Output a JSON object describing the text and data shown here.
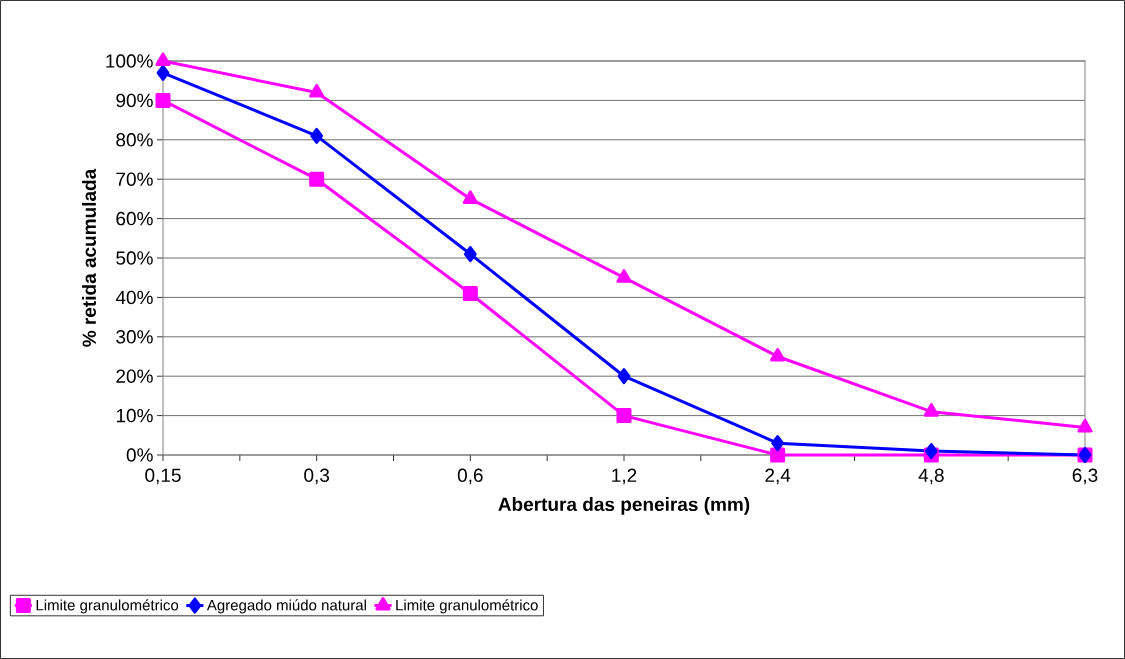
{
  "chart_data": {
    "type": "line",
    "xlabel": "Abertura das peneiras (mm)",
    "ylabel": "% retida acumulada",
    "categories": [
      "0,15",
      "0,3",
      "0,6",
      "1,2",
      "2,4",
      "4,8",
      "6,3"
    ],
    "series": [
      {
        "name": "Limite granulométrico",
        "color": "#ff00ff",
        "marker": "square",
        "values": [
          90,
          70,
          41,
          10,
          0,
          0,
          0
        ]
      },
      {
        "name": "Agregado miúdo natural",
        "color": "#0000ff",
        "marker": "diamond",
        "values": [
          97,
          81,
          51,
          20,
          3,
          1,
          0
        ]
      },
      {
        "name": "Limite granulométrico",
        "color": "#ff00ff",
        "marker": "triangle",
        "values": [
          100,
          92,
          65,
          45,
          25,
          11,
          7
        ]
      }
    ],
    "ylim": [
      0,
      100
    ],
    "yticks": [
      {
        "value": 0,
        "label": "0%"
      },
      {
        "value": 10,
        "label": "10%"
      },
      {
        "value": 20,
        "label": "20%"
      },
      {
        "value": 30,
        "label": "30%"
      },
      {
        "value": 40,
        "label": "40%"
      },
      {
        "value": 50,
        "label": "50%"
      },
      {
        "value": 60,
        "label": "60%"
      },
      {
        "value": 70,
        "label": "70%"
      },
      {
        "value": 80,
        "label": "80%"
      },
      {
        "value": 90,
        "label": "90%"
      },
      {
        "value": 100,
        "label": "100%"
      }
    ],
    "grid": "y",
    "legend": "bottom",
    "line_style": "solid"
  }
}
